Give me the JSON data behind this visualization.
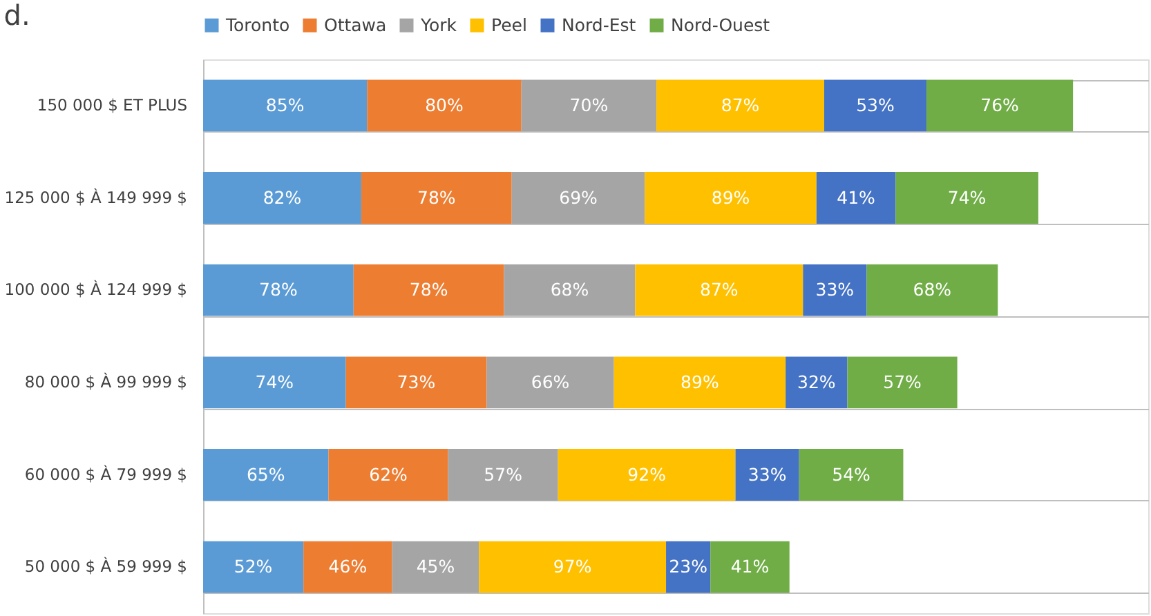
{
  "chart_data": {
    "type": "bar",
    "orientation": "horizontal",
    "stacked": true,
    "annotations": [
      "d."
    ],
    "categories": [
      "150 000 $ ET PLUS",
      "125 000 $ À 149 999 $",
      "100 000 $ À 124 999 $",
      "80 000 $ À 99 999 $",
      "60 000 $ À 79 999 $",
      "50 000 $ À 59 999 $"
    ],
    "series": [
      {
        "name": "Toronto",
        "color": "#5b9bd5",
        "values": [
          85,
          82,
          78,
          74,
          65,
          52
        ],
        "value_labels": [
          "85%",
          "82%",
          "78%",
          "74%",
          "65%",
          "52%"
        ]
      },
      {
        "name": "Ottawa",
        "color": "#ed7d31",
        "values": [
          80,
          78,
          78,
          73,
          62,
          46
        ],
        "value_labels": [
          "80%",
          "78%",
          "78%",
          "73%",
          "62%",
          "46%"
        ]
      },
      {
        "name": "York",
        "color": "#a5a5a5",
        "values": [
          70,
          69,
          68,
          66,
          57,
          45
        ],
        "value_labels": [
          "70%",
          "69%",
          "68%",
          "66%",
          "57%",
          "45%"
        ]
      },
      {
        "name": "Peel",
        "color": "#ffc000",
        "values": [
          87,
          89,
          87,
          89,
          92,
          97
        ],
        "value_labels": [
          "87%",
          "89%",
          "87%",
          "89%",
          "92%",
          "97%"
        ]
      },
      {
        "name": "Nord-Est",
        "color": "#4472c4",
        "values": [
          53,
          41,
          33,
          32,
          33,
          23
        ],
        "value_labels": [
          "53%",
          "41%",
          "33%",
          "32%",
          "33%",
          "23%"
        ]
      },
      {
        "name": "Nord-Ouest",
        "color": "#70ad47",
        "values": [
          76,
          74,
          68,
          57,
          54,
          41
        ],
        "value_labels": [
          "76%",
          "74%",
          "68%",
          "57%",
          "54%",
          "41%"
        ]
      }
    ],
    "xlim": [
      0,
      490
    ],
    "tick_labels": "y",
    "grid": "y",
    "legend": "top"
  }
}
